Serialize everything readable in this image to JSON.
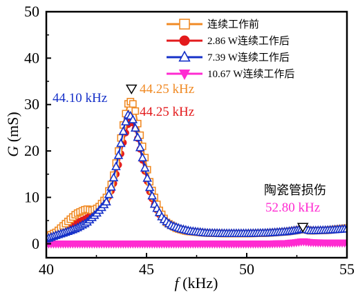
{
  "chart_data": {
    "type": "line",
    "xlabel_symbol": "f",
    "xlabel_unit": " (kHz)",
    "ylabel_symbol": "G",
    "ylabel_unit": " (mS)",
    "xlim": [
      40,
      55
    ],
    "ylim": [
      -3,
      50
    ],
    "xticks": [
      40,
      45,
      50,
      55
    ],
    "yticks": [
      0,
      10,
      20,
      30,
      40,
      50
    ],
    "series": [
      {
        "name": "连续工作前",
        "color": "#f08a24",
        "marker": "square-open",
        "x": [
          40,
          40.5,
          41,
          41.5,
          42,
          42.3,
          42.6,
          43,
          43.3,
          43.6,
          43.9,
          44.1,
          44.25,
          44.4,
          44.6,
          44.9,
          45.2,
          45.6,
          46,
          46.5,
          47,
          48,
          49,
          50,
          51,
          52,
          52.5,
          52.8,
          53.2,
          54,
          55
        ],
        "y": [
          1.5,
          2.5,
          4.5,
          6.5,
          7.5,
          7.2,
          7.8,
          10,
          13.5,
          20,
          27,
          30.5,
          30.7,
          29.5,
          25,
          19,
          12.5,
          7.5,
          4.6,
          3.3,
          2.7,
          2.3,
          2.2,
          2.2,
          2.3,
          2.6,
          2.9,
          3.2,
          2.8,
          2.9,
          3.4
        ]
      },
      {
        "name": "2.86 W连续工作后",
        "color": "#e31a1c",
        "marker": "circle-filled",
        "x": [
          40,
          40.5,
          41,
          41.5,
          42,
          42.5,
          43,
          43.3,
          43.6,
          43.9,
          44.1,
          44.25,
          44.4,
          44.6,
          44.9,
          45.2,
          45.6,
          46,
          46.5,
          47,
          48,
          49,
          50,
          51,
          52,
          52.5,
          52.8,
          53.2,
          54,
          55
        ],
        "y": [
          1.5,
          2.5,
          3.5,
          4.5,
          5.5,
          7,
          9,
          12,
          17,
          23,
          26,
          26.5,
          25.5,
          22,
          16,
          10.5,
          6.5,
          4.5,
          3.3,
          2.7,
          2.3,
          2.2,
          2.2,
          2.3,
          2.6,
          2.9,
          3.2,
          2.8,
          2.9,
          3.4
        ]
      },
      {
        "name": "7.39 W连续工作后",
        "color": "#1530c8",
        "marker": "triangle-open",
        "x": [
          40,
          40.5,
          41,
          41.5,
          42,
          42.5,
          43,
          43.3,
          43.6,
          43.9,
          44.1,
          44.3,
          44.5,
          44.8,
          45.1,
          45.4,
          45.8,
          46.2,
          46.7,
          47.2,
          48,
          49,
          50,
          51,
          52,
          52.5,
          52.8,
          53.2,
          54,
          55
        ],
        "y": [
          1,
          1.8,
          2.5,
          3.3,
          4.5,
          6.5,
          9,
          13,
          19,
          25.5,
          28,
          27,
          24,
          18.5,
          13,
          8.5,
          5.5,
          4,
          3.2,
          2.7,
          2.3,
          2.2,
          2.2,
          2.3,
          2.6,
          2.9,
          3.2,
          2.8,
          2.9,
          3.2
        ]
      },
      {
        "name": "10.67 W连续工作后",
        "color": "#ff2bd1",
        "marker": "triangle-down-filled",
        "x": [
          40,
          41,
          42,
          43,
          44,
          45,
          46,
          47,
          48,
          49,
          50,
          51,
          52,
          52.5,
          52.8,
          53.2,
          54,
          55
        ],
        "y": [
          0,
          0,
          0,
          0,
          0,
          0,
          0,
          0,
          0,
          0,
          0,
          0,
          0.1,
          0.3,
          0.5,
          0.3,
          0.2,
          0.2
        ]
      }
    ],
    "annotations": [
      {
        "text": "44.10 kHz",
        "color": "#1530c8"
      },
      {
        "text": "44.25 kHz",
        "color": "#f08a24"
      },
      {
        "text": "44.25 kHz",
        "color": "#e31a1c"
      },
      {
        "text": "陶瓷管损伤",
        "color": "#000000"
      },
      {
        "text": "52.80 kHz",
        "color": "#ff2bd1"
      }
    ],
    "peak_markers": [
      {
        "x": 44.25,
        "y": 33
      },
      {
        "x": 52.8,
        "y": 3.2
      }
    ]
  }
}
